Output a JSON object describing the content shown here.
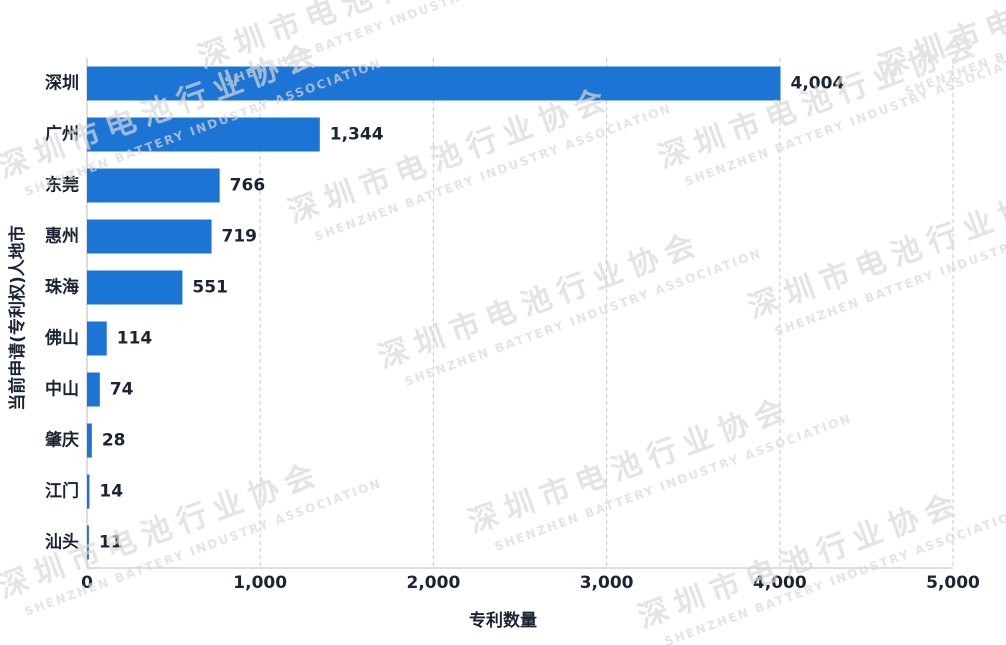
{
  "chart_data": {
    "type": "hbar",
    "xlabel": "专利数量",
    "ylabel": "当前申请(专利权)人地市",
    "categories": [
      "深圳",
      "广州",
      "东莞",
      "惠州",
      "珠海",
      "佛山",
      "中山",
      "肇庆",
      "江门",
      "汕头"
    ],
    "values": [
      4004,
      1344,
      766,
      719,
      551,
      114,
      74,
      28,
      14,
      11
    ],
    "value_labels": [
      "4,004",
      "1,344",
      "766",
      "719",
      "551",
      "114",
      "74",
      "28",
      "14",
      "11"
    ],
    "color": "#1c74d4",
    "xlim": [
      0,
      5000
    ],
    "xticks": [
      0,
      {
        "value": 1000,
        "label": "1,000"
      },
      {
        "value": 2000,
        "label": "2,000"
      },
      {
        "value": 3000,
        "label": "3,000"
      },
      {
        "value": 4000,
        "label": "4,000"
      },
      {
        "value": 5000,
        "label": "5,000"
      }
    ],
    "grid": true
  },
  "watermark": {
    "cn": "深圳市电池行业协会",
    "en": "SHENZHEN BATTERY INDUSTRY ASSOCIATION"
  }
}
